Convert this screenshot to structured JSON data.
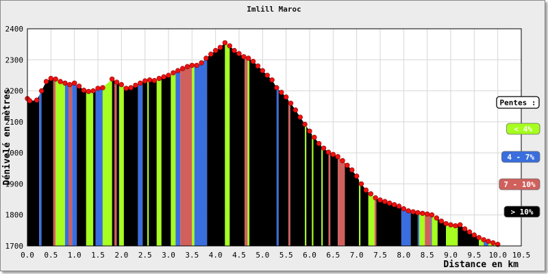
{
  "chart_data": {
    "type": "area",
    "title": "Imlill Maroc",
    "xlabel": "Distance en km",
    "ylabel": "Dénivelé en mètres",
    "xlim": [
      0,
      10.5
    ],
    "ylim": [
      1700,
      2400
    ],
    "xticks": [
      "0.0",
      "0.5",
      "1.0",
      "1.5",
      "2.0",
      "2.5",
      "3.0",
      "3.5",
      "4.0",
      "4.5",
      "5.0",
      "5.5",
      "6.0",
      "6.5",
      "7.0",
      "7.5",
      "8.0",
      "8.5",
      "9.0",
      "9.5",
      "10.0",
      "10.5"
    ],
    "yticks": [
      "1700",
      "1800",
      "1900",
      "2000",
      "2100",
      "2200",
      "2300",
      "2400"
    ],
    "grid": true,
    "legend": {
      "placement": "right",
      "title": "Pentes :",
      "entries": [
        {
          "label": "< 4%",
          "color": "#a6ff1e",
          "text_color": "#ffffff"
        },
        {
          "label": "4 - 7%",
          "color": "#3a6ede",
          "text_color": "#ffffff"
        },
        {
          "label": "7 - 10%",
          "color": "#d0605c",
          "text_color": "#ffffff"
        },
        {
          "label": "> 10%",
          "color": "#000000",
          "text_color": "#ffffff"
        }
      ]
    },
    "x": [
      0.0,
      0.05,
      0.2,
      0.3,
      0.4,
      0.5,
      0.6,
      0.7,
      0.8,
      0.9,
      1.0,
      1.1,
      1.2,
      1.3,
      1.4,
      1.5,
      1.6,
      1.8,
      1.9,
      2.0,
      2.1,
      2.2,
      2.3,
      2.4,
      2.5,
      2.6,
      2.7,
      2.8,
      2.9,
      3.0,
      3.1,
      3.2,
      3.3,
      3.4,
      3.5,
      3.6,
      3.7,
      3.8,
      3.9,
      4.0,
      4.1,
      4.2,
      4.3,
      4.4,
      4.5,
      4.6,
      4.7,
      4.8,
      4.9,
      5.0,
      5.1,
      5.2,
      5.3,
      5.4,
      5.5,
      5.6,
      5.7,
      5.8,
      5.9,
      6.0,
      6.1,
      6.2,
      6.3,
      6.4,
      6.5,
      6.6,
      6.7,
      6.8,
      6.9,
      7.0,
      7.1,
      7.2,
      7.3,
      7.4,
      7.5,
      7.6,
      7.7,
      7.8,
      7.9,
      8.0,
      8.1,
      8.2,
      8.3,
      8.4,
      8.5,
      8.6,
      8.7,
      8.8,
      8.9,
      9.0,
      9.1,
      9.2,
      9.3,
      9.4,
      9.5,
      9.6,
      9.7,
      9.8,
      9.9,
      10.0
    ],
    "y": [
      2175,
      2168,
      2170,
      2200,
      2230,
      2240,
      2238,
      2230,
      2225,
      2220,
      2225,
      2215,
      2202,
      2198,
      2200,
      2208,
      2210,
      2238,
      2228,
      2220,
      2208,
      2210,
      2218,
      2225,
      2232,
      2235,
      2233,
      2240,
      2245,
      2250,
      2258,
      2265,
      2272,
      2278,
      2282,
      2282,
      2290,
      2305,
      2318,
      2330,
      2340,
      2355,
      2345,
      2330,
      2320,
      2310,
      2305,
      2295,
      2280,
      2265,
      2250,
      2235,
      2210,
      2195,
      2180,
      2160,
      2138,
      2115,
      2092,
      2070,
      2050,
      2030,
      2015,
      2002,
      1995,
      1988,
      1975,
      1960,
      1945,
      1925,
      1900,
      1880,
      1868,
      1855,
      1848,
      1843,
      1838,
      1833,
      1828,
      1820,
      1813,
      1810,
      1807,
      1805,
      1803,
      1800,
      1790,
      1780,
      1772,
      1768,
      1765,
      1768,
      1755,
      1745,
      1735,
      1727,
      1720,
      1715,
      1710,
      1705
    ],
    "segments": [
      {
        "from": 0.0,
        "to": 0.25,
        "slope": "> 10%"
      },
      {
        "from": 0.25,
        "to": 0.3,
        "slope": "4 - 7%"
      },
      {
        "from": 0.3,
        "to": 0.55,
        "slope": "> 10%"
      },
      {
        "from": 0.55,
        "to": 0.6,
        "slope": "7 - 10%"
      },
      {
        "from": 0.6,
        "to": 0.8,
        "slope": "< 4%"
      },
      {
        "from": 0.8,
        "to": 0.88,
        "slope": "4 - 7%"
      },
      {
        "from": 0.88,
        "to": 0.95,
        "slope": "7 - 10%"
      },
      {
        "from": 0.95,
        "to": 1.05,
        "slope": "4 - 7%"
      },
      {
        "from": 1.05,
        "to": 1.25,
        "slope": "> 10%"
      },
      {
        "from": 1.25,
        "to": 1.4,
        "slope": "< 4%"
      },
      {
        "from": 1.4,
        "to": 1.45,
        "slope": "> 10%"
      },
      {
        "from": 1.45,
        "to": 1.6,
        "slope": "4 - 7%"
      },
      {
        "from": 1.6,
        "to": 1.8,
        "slope": "< 4%"
      },
      {
        "from": 1.8,
        "to": 1.85,
        "slope": "> 10%"
      },
      {
        "from": 1.85,
        "to": 1.9,
        "slope": "7 - 10%"
      },
      {
        "from": 1.9,
        "to": 1.95,
        "slope": "> 10%"
      },
      {
        "from": 1.95,
        "to": 2.05,
        "slope": "< 4%"
      },
      {
        "from": 2.05,
        "to": 2.35,
        "slope": "> 10%"
      },
      {
        "from": 2.35,
        "to": 2.45,
        "slope": "4 - 7%"
      },
      {
        "from": 2.45,
        "to": 2.55,
        "slope": "> 10%"
      },
      {
        "from": 2.55,
        "to": 2.58,
        "slope": "< 4%"
      },
      {
        "from": 2.58,
        "to": 2.75,
        "slope": "> 10%"
      },
      {
        "from": 2.75,
        "to": 2.85,
        "slope": "< 4%"
      },
      {
        "from": 2.85,
        "to": 3.05,
        "slope": "> 10%"
      },
      {
        "from": 3.05,
        "to": 3.15,
        "slope": "< 4%"
      },
      {
        "from": 3.15,
        "to": 3.25,
        "slope": "4 - 7%"
      },
      {
        "from": 3.25,
        "to": 3.5,
        "slope": "7 - 10%"
      },
      {
        "from": 3.5,
        "to": 3.55,
        "slope": "< 4%"
      },
      {
        "from": 3.55,
        "to": 3.82,
        "slope": "4 - 7%"
      },
      {
        "from": 3.82,
        "to": 4.2,
        "slope": "> 10%"
      },
      {
        "from": 4.2,
        "to": 4.3,
        "slope": "< 4%"
      },
      {
        "from": 4.3,
        "to": 4.62,
        "slope": "> 10%"
      },
      {
        "from": 4.62,
        "to": 4.68,
        "slope": "7 - 10%"
      },
      {
        "from": 4.68,
        "to": 4.72,
        "slope": "< 4%"
      },
      {
        "from": 4.72,
        "to": 5.3,
        "slope": "> 10%"
      },
      {
        "from": 5.3,
        "to": 5.34,
        "slope": "4 - 7%"
      },
      {
        "from": 5.34,
        "to": 5.55,
        "slope": "> 10%"
      },
      {
        "from": 5.55,
        "to": 5.59,
        "slope": "7 - 10%"
      },
      {
        "from": 5.59,
        "to": 5.9,
        "slope": "> 10%"
      },
      {
        "from": 5.9,
        "to": 5.93,
        "slope": "< 4%"
      },
      {
        "from": 5.93,
        "to": 6.05,
        "slope": "> 10%"
      },
      {
        "from": 6.05,
        "to": 6.08,
        "slope": "< 4%"
      },
      {
        "from": 6.08,
        "to": 6.25,
        "slope": "> 10%"
      },
      {
        "from": 6.25,
        "to": 6.28,
        "slope": "< 4%"
      },
      {
        "from": 6.28,
        "to": 6.4,
        "slope": "> 10%"
      },
      {
        "from": 6.4,
        "to": 6.44,
        "slope": "7 - 10%"
      },
      {
        "from": 6.44,
        "to": 6.6,
        "slope": "> 10%"
      },
      {
        "from": 6.6,
        "to": 6.75,
        "slope": "7 - 10%"
      },
      {
        "from": 6.75,
        "to": 7.05,
        "slope": "> 10%"
      },
      {
        "from": 7.05,
        "to": 7.08,
        "slope": "< 4%"
      },
      {
        "from": 7.08,
        "to": 7.25,
        "slope": "> 10%"
      },
      {
        "from": 7.25,
        "to": 7.38,
        "slope": "< 4%"
      },
      {
        "from": 7.38,
        "to": 7.42,
        "slope": "7 - 10%"
      },
      {
        "from": 7.42,
        "to": 7.95,
        "slope": "> 10%"
      },
      {
        "from": 7.95,
        "to": 8.15,
        "slope": "4 - 7%"
      },
      {
        "from": 8.15,
        "to": 8.3,
        "slope": "> 10%"
      },
      {
        "from": 8.3,
        "to": 8.33,
        "slope": "4 - 7%"
      },
      {
        "from": 8.33,
        "to": 8.45,
        "slope": "< 4%"
      },
      {
        "from": 8.45,
        "to": 8.58,
        "slope": "7 - 10%"
      },
      {
        "from": 8.58,
        "to": 8.6,
        "slope": "4 - 7%"
      },
      {
        "from": 8.6,
        "to": 8.72,
        "slope": "< 4%"
      },
      {
        "from": 8.72,
        "to": 8.9,
        "slope": "> 10%"
      },
      {
        "from": 8.9,
        "to": 9.15,
        "slope": "< 4%"
      },
      {
        "from": 9.15,
        "to": 9.6,
        "slope": "> 10%"
      },
      {
        "from": 9.6,
        "to": 9.7,
        "slope": "< 4%"
      },
      {
        "from": 9.7,
        "to": 9.8,
        "slope": "4 - 7%"
      },
      {
        "from": 9.8,
        "to": 10.0,
        "slope": "< 4%"
      }
    ]
  }
}
